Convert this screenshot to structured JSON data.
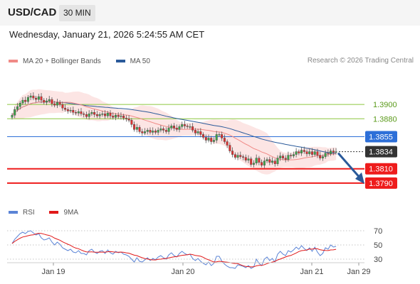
{
  "header": {
    "symbol": "USD/CAD",
    "interval": "30 MIN"
  },
  "datetime": "Wednesday, January 21, 2026 5:24:55 AM CET",
  "legend": {
    "ma20_label": "MA 20 + Bollinger Bands",
    "ma20_color": "#f08a86",
    "ma50_label": "MA 50",
    "ma50_color": "#2a5a9a"
  },
  "credit": "Research © 2026 Trading Central",
  "rsi_legend": {
    "rsi_label": "RSI",
    "rsi_color": "#5b84d6",
    "ma_label": "9MA",
    "ma_color": "#e11919"
  },
  "chart_data": [
    {
      "type": "candlestick",
      "x_ticks": [
        "Jan 19",
        "Jan 20",
        "Jan 21",
        "Jan 29"
      ],
      "ylim": [
        1.3773,
        1.3919
      ],
      "levels": [
        {
          "value": 1.39,
          "label": "1.3900",
          "color": "#8cc63f",
          "style": "resistance"
        },
        {
          "value": 1.388,
          "label": "1.3880",
          "color": "#8cc63f",
          "style": "resistance"
        },
        {
          "value": 1.3855,
          "label": "1.3855",
          "color": "#2d6fd8",
          "style": "pivot"
        },
        {
          "value": 1.3834,
          "label": "1.3834",
          "color": "#333333",
          "style": "last"
        },
        {
          "value": 1.381,
          "label": "1.3810",
          "color": "#ee1c1c",
          "style": "target"
        },
        {
          "value": 1.379,
          "label": "1.3790",
          "color": "#ee1c1c",
          "style": "target"
        }
      ],
      "close": [
        1.3885,
        1.3893,
        1.3897,
        1.3902,
        1.3906,
        1.3904,
        1.391,
        1.3912,
        1.3909,
        1.3907,
        1.3911,
        1.3906,
        1.3903,
        1.3905,
        1.3907,
        1.3901,
        1.3899,
        1.3903,
        1.39,
        1.3895,
        1.3893,
        1.3891,
        1.3892,
        1.3889,
        1.3888,
        1.389,
        1.3887,
        1.3886,
        1.3883,
        1.3887,
        1.3889,
        1.3886,
        1.3884,
        1.3886,
        1.3887,
        1.3884,
        1.3888,
        1.3884,
        1.3882,
        1.3885,
        1.3883,
        1.3884,
        1.3881,
        1.388,
        1.3878,
        1.3872,
        1.3865,
        1.3868,
        1.3862,
        1.386,
        1.3862,
        1.3864,
        1.3861,
        1.3863,
        1.3861,
        1.3864,
        1.3866,
        1.3864,
        1.3862,
        1.3867,
        1.387,
        1.3867,
        1.3865,
        1.3869,
        1.3872,
        1.387,
        1.3869,
        1.3869,
        1.3864,
        1.386,
        1.3862,
        1.3858,
        1.3854,
        1.385,
        1.3853,
        1.3848,
        1.385,
        1.3858,
        1.3858,
        1.3853,
        1.3848,
        1.3843,
        1.3835,
        1.383,
        1.3826,
        1.3829,
        1.3827,
        1.3826,
        1.3822,
        1.3824,
        1.3816,
        1.3818,
        1.3825,
        1.3819,
        1.3815,
        1.3821,
        1.3823,
        1.3819,
        1.3821,
        1.3817,
        1.3825,
        1.3828,
        1.3825,
        1.3823,
        1.3829,
        1.3828,
        1.383,
        1.3834,
        1.3832,
        1.3836,
        1.3834,
        1.3831,
        1.3834,
        1.383,
        1.3834,
        1.3829,
        1.3825,
        1.3827,
        1.3832,
        1.3831,
        1.3835,
        1.3833,
        1.3834
      ]
    },
    {
      "type": "line",
      "name": "RSI",
      "ylim": [
        20,
        80
      ],
      "y_ticks": [
        30,
        50,
        70
      ],
      "x_ticks": [
        "Jan 19",
        "Jan 20",
        "Jan 21",
        "Jan 29"
      ],
      "values": [
        52,
        58,
        62,
        66,
        68,
        66,
        69,
        70,
        67,
        64,
        66,
        60,
        57,
        58,
        60,
        54,
        50,
        54,
        51,
        46,
        44,
        42,
        44,
        40,
        39,
        42,
        38,
        38,
        36,
        42,
        44,
        40,
        38,
        41,
        42,
        38,
        43,
        39,
        37,
        41,
        39,
        40,
        37,
        36,
        34,
        30,
        26,
        32,
        27,
        26,
        29,
        32,
        28,
        31,
        29,
        33,
        35,
        32,
        30,
        36,
        39,
        35,
        33,
        38,
        41,
        38,
        36,
        37,
        31,
        28,
        31,
        27,
        24,
        22,
        26,
        21,
        24,
        34,
        34,
        27,
        23,
        20,
        18,
        18,
        17,
        22,
        21,
        20,
        18,
        21,
        17,
        19,
        30,
        24,
        21,
        30,
        33,
        28,
        31,
        26,
        37,
        41,
        37,
        35,
        42,
        40,
        43,
        47,
        44,
        49,
        45,
        42,
        46,
        41,
        47,
        40,
        35,
        38,
        46,
        44,
        50,
        47,
        48
      ]
    }
  ]
}
